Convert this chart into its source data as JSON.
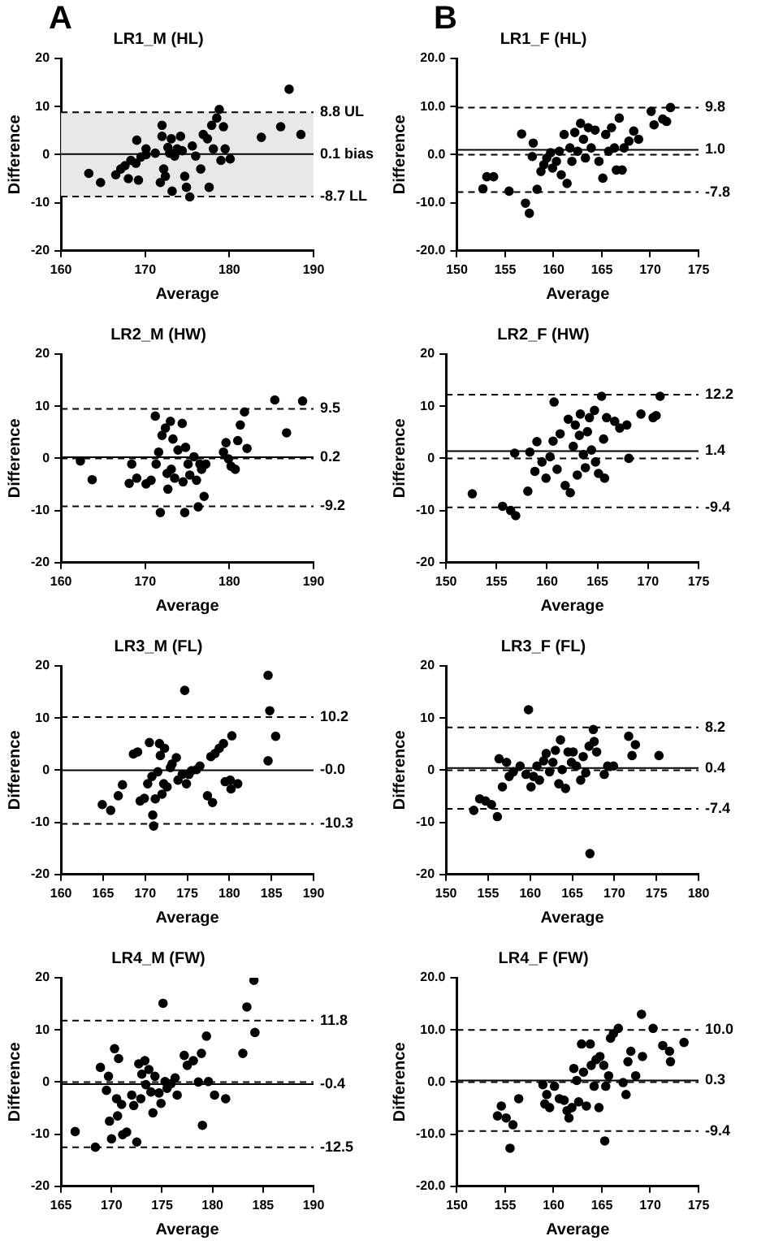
{
  "chart_data": [
    {
      "type": "scatter",
      "title": "LR1_M (HL)",
      "xlabel": "Average",
      "ylabel": "Difference",
      "annotations": [
        "A"
      ],
      "color": "#000000",
      "marker": "circle",
      "grid": false,
      "legend": false,
      "xlim": [
        160,
        190
      ],
      "xticks": [
        160,
        170,
        180,
        190
      ],
      "ylim": [
        -20,
        20
      ],
      "yticks": [
        -20,
        -10,
        0,
        10,
        20
      ],
      "ref_lines": [
        {
          "axis": "y",
          "value": 8.8,
          "label": "8.8 UL",
          "line_style": "dashed"
        },
        {
          "axis": "y",
          "value": 0.1,
          "label": "0.1 bias",
          "line_style": "solid"
        },
        {
          "axis": "y",
          "value": -8.7,
          "label": "-8.7 LL",
          "line_style": "dashed"
        }
      ],
      "bands": [
        {
          "axis": "y",
          "from": -8.7,
          "to": 8.8,
          "color": "#e8e8e8"
        }
      ],
      "x": [
        163.3,
        164.7,
        166.5,
        167.1,
        167.6,
        168,
        168.3,
        168.9,
        169,
        169.2,
        169.5,
        170.1,
        170.1,
        171.2,
        171.8,
        172,
        172,
        172.2,
        172.4,
        172.7,
        172.9,
        173.1,
        173.2,
        173.5,
        173.8,
        174.2,
        174.4,
        174.7,
        174.9,
        175.3,
        175.6,
        176,
        176.6,
        176.9,
        177.4,
        177.6,
        177.9,
        178.1,
        178.5,
        178.8,
        179,
        179.3,
        179.5,
        180.1,
        183.8,
        186.1,
        187.1,
        188.5
      ],
      "values": [
        -3.9,
        -5.8,
        -4.2,
        -3,
        -2.3,
        -5,
        -1.2,
        -1.8,
        3,
        -5.3,
        -0.5,
        1.2,
        0,
        0.3,
        -5.8,
        6.1,
        3.8,
        -3,
        -4.5,
        1.5,
        0.3,
        3.3,
        -7.6,
        -0.3,
        1.2,
        3.8,
        0.8,
        -4.5,
        -6.8,
        -8.8,
        1.8,
        -0.3,
        -3,
        4.2,
        3.3,
        -6.8,
        6.1,
        1.2,
        7.6,
        9.4,
        -1.2,
        5.8,
        1.2,
        -0.9,
        3.6,
        5.8,
        13.6,
        4.2
      ]
    },
    {
      "type": "scatter",
      "title": "LR1_F (HL)",
      "xlabel": "Average",
      "ylabel": "Difference",
      "annotations": [
        "B"
      ],
      "color": "#000000",
      "marker": "circle",
      "grid": false,
      "legend": false,
      "xlim": [
        150,
        175
      ],
      "xticks": [
        150,
        155,
        160,
        165,
        170,
        175
      ],
      "ylim": [
        -20,
        20
      ],
      "yticks": [
        {
          "value": -20,
          "label": "-20.0"
        },
        {
          "value": -10,
          "label": "-10.0"
        },
        {
          "value": 0,
          "label": "0.0"
        },
        {
          "value": 10,
          "label": "10.0"
        },
        {
          "value": 20,
          "label": "20.0"
        }
      ],
      "ref_lines": [
        {
          "axis": "y",
          "value": 9.8,
          "label": "9.8",
          "line_style": "dashed"
        },
        {
          "axis": "y",
          "value": 1.0,
          "label": "1.0",
          "line_style": "solid"
        },
        {
          "axis": "y",
          "value": 0,
          "line_style": "dashed"
        },
        {
          "axis": "y",
          "value": -7.8,
          "label": "-7.8",
          "line_style": "dashed"
        }
      ],
      "x": [
        152.7,
        153.1,
        153.8,
        155.4,
        156.7,
        157.1,
        157.5,
        157.8,
        157.9,
        158.3,
        158.7,
        159,
        159.3,
        159.7,
        159.9,
        160.3,
        160.6,
        160.8,
        161.1,
        161.4,
        161.7,
        161.9,
        162.2,
        162.5,
        162.8,
        163.1,
        163.3,
        163.6,
        163.9,
        164.3,
        164.7,
        165.1,
        165.4,
        165.7,
        166,
        166.3,
        166.5,
        166.8,
        167.1,
        167.3,
        167.8,
        168.3,
        168.8,
        170.1,
        170.4,
        171.3,
        171.7,
        172.1
      ],
      "values": [
        -7.1,
        -4.6,
        -4.6,
        -7.6,
        4.3,
        -10.1,
        -12.2,
        -0.4,
        2.4,
        -7.2,
        -3.5,
        -2.1,
        -0.7,
        0.4,
        -2.8,
        -1.4,
        0.7,
        -4.2,
        4.2,
        -6,
        1.4,
        -1.4,
        4.6,
        0.7,
        6.5,
        3.2,
        -0.7,
        5.6,
        1.4,
        5.1,
        -1.4,
        -4.9,
        4.2,
        0.7,
        5.6,
        1.4,
        -3.2,
        7.6,
        -3.2,
        1.4,
        2.8,
        4.9,
        3.2,
        9,
        6.2,
        7.4,
        6.9,
        9.8
      ]
    },
    {
      "type": "scatter",
      "title": "LR2_M (HW)",
      "xlabel": "Average",
      "ylabel": "Difference",
      "color": "#000000",
      "marker": "circle",
      "grid": false,
      "legend": false,
      "xlim": [
        160,
        190
      ],
      "xticks": [
        160,
        170,
        180,
        190
      ],
      "ylim": [
        -20,
        20
      ],
      "yticks": [
        -20,
        -10,
        0,
        10,
        20
      ],
      "ref_lines": [
        {
          "axis": "y",
          "value": 9.5,
          "label": "9.5",
          "line_style": "dashed"
        },
        {
          "axis": "y",
          "value": 0.2,
          "label": "0.2",
          "line_style": "solid"
        },
        {
          "axis": "y",
          "value": 0,
          "line_style": "dashed"
        },
        {
          "axis": "y",
          "value": -9.2,
          "label": "-9.2",
          "line_style": "dashed"
        }
      ],
      "x": [
        162.3,
        163.7,
        168.1,
        168.4,
        169,
        170.1,
        170.7,
        171.2,
        171.3,
        171.6,
        171.8,
        172,
        172.4,
        172.6,
        172.7,
        173,
        173.1,
        173.3,
        173.5,
        173.9,
        174.4,
        174.5,
        174.7,
        174.8,
        175.1,
        175.3,
        175.8,
        176.1,
        176.3,
        176.5,
        176.7,
        177,
        177.2,
        179.3,
        179.6,
        179.9,
        180.2,
        180.7,
        181,
        181.3,
        181.8,
        182.1,
        185.4,
        186.8,
        188.7
      ],
      "values": [
        -0.5,
        -4.1,
        -4.8,
        -1.1,
        -3.8,
        -4.9,
        -4.2,
        8.1,
        -1.1,
        1.2,
        -10.4,
        4.4,
        5.8,
        -2.9,
        -5.9,
        7.1,
        -2.1,
        3.7,
        -3.8,
        1.6,
        6.7,
        -4.5,
        -10.4,
        2.1,
        -1.1,
        -3.2,
        0.3,
        -4.2,
        -9.3,
        -1.1,
        -2.1,
        -7.3,
        -1.1,
        1.2,
        3,
        -0.1,
        -1.5,
        -2.1,
        3.4,
        6.4,
        8.9,
        1.9,
        11.2,
        4.9,
        11
      ]
    },
    {
      "type": "scatter",
      "title": "LR2_F (HW)",
      "xlabel": "Average",
      "ylabel": "Difference",
      "color": "#000000",
      "marker": "circle",
      "grid": false,
      "legend": false,
      "xlim": [
        150,
        175
      ],
      "xticks": [
        150,
        155,
        160,
        165,
        170,
        175
      ],
      "ylim": [
        -20,
        20
      ],
      "yticks": [
        -20,
        -10,
        0,
        10,
        20
      ],
      "ref_lines": [
        {
          "axis": "y",
          "value": 12.2,
          "label": "12.2",
          "line_style": "dashed"
        },
        {
          "axis": "y",
          "value": 1.4,
          "label": "1.4",
          "line_style": "solid"
        },
        {
          "axis": "y",
          "value": 0,
          "line_style": "dashed"
        },
        {
          "axis": "y",
          "value": -9.4,
          "label": "-9.4",
          "line_style": "dashed"
        }
      ],
      "x": [
        152.6,
        155.6,
        156.4,
        156.9,
        156.8,
        158.1,
        158.3,
        158.8,
        159,
        159.5,
        159.9,
        160.3,
        160.6,
        160.7,
        161,
        161.3,
        161.8,
        162.1,
        162.3,
        162.6,
        162.8,
        163,
        163.2,
        163.3,
        163.6,
        163.8,
        164,
        164.2,
        164.4,
        164.7,
        164.8,
        165.1,
        165.4,
        165.6,
        165.7,
        165.9,
        166.7,
        167.2,
        167.9,
        168.1,
        169.3,
        170.5,
        170.8,
        171.2
      ],
      "values": [
        -6.8,
        -9.2,
        -10,
        -11,
        1,
        -6.3,
        1.2,
        -2.5,
        3.2,
        -0.7,
        -3.8,
        0.3,
        3.3,
        10.8,
        -2.1,
        4.7,
        -5.2,
        7.5,
        -6.6,
        2.3,
        6.4,
        -3.2,
        4.4,
        8.5,
        0.7,
        -1.8,
        5.1,
        7.8,
        1.6,
        9.2,
        -0.7,
        -2.9,
        11.9,
        3.7,
        -3.8,
        7.8,
        7.1,
        5.8,
        6.4,
        0,
        8.5,
        7.8,
        8.2,
        11.9
      ]
    },
    {
      "type": "scatter",
      "title": "LR3_M (FL)",
      "xlabel": "Average",
      "ylabel": "Difference",
      "color": "#000000",
      "marker": "circle",
      "grid": false,
      "legend": false,
      "xlim": [
        160,
        190
      ],
      "xticks": [
        160,
        165,
        170,
        175,
        180,
        185,
        190
      ],
      "ylim": [
        -20,
        20
      ],
      "yticks": [
        -20,
        -10,
        0,
        10,
        20
      ],
      "ref_lines": [
        {
          "axis": "y",
          "value": 10.2,
          "label": "10.2",
          "line_style": "dashed"
        },
        {
          "axis": "y",
          "value": 0,
          "label": "-0.0",
          "line_style": "solid"
        },
        {
          "axis": "y",
          "value": -10.3,
          "label": "-10.3",
          "line_style": "dashed"
        }
      ],
      "x": [
        164.9,
        165.9,
        166.8,
        167.3,
        168.6,
        169.1,
        169.4,
        169.9,
        170.5,
        170.3,
        170.8,
        170.9,
        171,
        171.2,
        171.5,
        171.7,
        171.8,
        172,
        172.2,
        172.3,
        172.6,
        173,
        173.2,
        173.7,
        173.9,
        174.7,
        174.4,
        174.9,
        175.2,
        175.5,
        176.1,
        176.5,
        177.4,
        177.8,
        178,
        178.3,
        178.8,
        179.3,
        179.5,
        180.1,
        180.3,
        180.2,
        181,
        184.6,
        184.6,
        184.8,
        185.5
      ],
      "values": [
        -6.6,
        -7.7,
        -4.9,
        -2.8,
        3.1,
        3.5,
        -5.9,
        -5.4,
        5.3,
        -2.6,
        -1.2,
        -8.6,
        -10.7,
        -5.5,
        -0.3,
        5.1,
        2.8,
        -4.6,
        -2.6,
        4.2,
        -3.2,
        0.5,
        1.2,
        2.4,
        -1.9,
        15.3,
        -0.8,
        -2.6,
        -0.8,
        -0.1,
        0.1,
        0.8,
        -4.9,
        2.6,
        -6.2,
        3.2,
        4.2,
        5.1,
        -2.2,
        -1.9,
        6.6,
        -3.6,
        -2.6,
        1.8,
        18.2,
        11.4,
        6.5
      ]
    },
    {
      "type": "scatter",
      "title": "LR3_F (FL)",
      "xlabel": "Average",
      "ylabel": "Difference",
      "color": "#000000",
      "marker": "circle",
      "grid": false,
      "legend": false,
      "xlim": [
        150,
        180
      ],
      "xticks": [
        150,
        155,
        160,
        165,
        170,
        175,
        180
      ],
      "ylim": [
        -20,
        20
      ],
      "yticks": [
        -20,
        -10,
        0,
        10,
        20
      ],
      "ref_lines": [
        {
          "axis": "y",
          "value": 8.2,
          "label": "8.2",
          "line_style": "dashed"
        },
        {
          "axis": "y",
          "value": 0.4,
          "label": "0.4",
          "line_style": "solid"
        },
        {
          "axis": "y",
          "value": 0,
          "line_style": "dashed"
        },
        {
          "axis": "y",
          "value": -7.4,
          "label": "-7.4",
          "line_style": "dashed"
        }
      ],
      "x": [
        153.3,
        154,
        154.7,
        155.4,
        156.1,
        156.3,
        156.7,
        157.2,
        157.5,
        158,
        158.8,
        159.8,
        159.5,
        160.1,
        160.4,
        160.8,
        161.1,
        161.6,
        161.9,
        162.3,
        162.7,
        163,
        163.4,
        163.6,
        163.8,
        164.2,
        164.5,
        164.9,
        165.1,
        165.5,
        166,
        166.3,
        166.6,
        167,
        167.1,
        167.5,
        167.6,
        167.9,
        168.8,
        169.2,
        169.9,
        171.7,
        172.1,
        172.5,
        175.3
      ],
      "values": [
        -7.7,
        -5.5,
        -5.9,
        -6.6,
        -8.9,
        2.2,
        -3.2,
        1.5,
        -1.2,
        -0.3,
        0.8,
        11.6,
        -0.8,
        -3.2,
        -1.2,
        0.8,
        -1.9,
        1.8,
        3.2,
        -0.3,
        1.5,
        3.8,
        -2.6,
        5.8,
        0.1,
        -3.5,
        3.5,
        1.5,
        3.5,
        0.8,
        -1.9,
        2.6,
        -0.5,
        4.6,
        -16,
        7.8,
        5.5,
        3.5,
        -0.8,
        0.8,
        0.8,
        6.5,
        2.8,
        4.9,
        2.8
      ]
    },
    {
      "type": "scatter",
      "title": "LR4_M (FW)",
      "xlabel": "Average",
      "ylabel": "Difference",
      "color": "#000000",
      "marker": "circle",
      "grid": false,
      "legend": false,
      "xlim": [
        165,
        190
      ],
      "xticks": [
        165,
        170,
        175,
        180,
        185,
        190
      ],
      "ylim": [
        -20,
        20
      ],
      "yticks": [
        -20,
        -10,
        0,
        10,
        20
      ],
      "ref_lines": [
        {
          "axis": "y",
          "value": 11.8,
          "label": "11.8",
          "line_style": "dashed"
        },
        {
          "axis": "y",
          "value": -0.4,
          "label": "-0.4",
          "line_style": "solid"
        },
        {
          "axis": "y",
          "value": 0,
          "line_style": "dashed"
        },
        {
          "axis": "y",
          "value": -12.5,
          "label": "-12.5",
          "line_style": "dashed"
        }
      ],
      "x": [
        166.4,
        168.4,
        168.9,
        169.5,
        169.7,
        169.8,
        170,
        170.3,
        170.5,
        170.6,
        170.7,
        171,
        171.1,
        171.5,
        172,
        172.2,
        172.5,
        172.7,
        172.9,
        173,
        173.3,
        173.4,
        173.7,
        173.9,
        174.1,
        174.3,
        174.7,
        174.9,
        175.1,
        175.3,
        175.5,
        175.9,
        176.3,
        176.5,
        177.2,
        177.5,
        178.1,
        178.6,
        178.9,
        179,
        179.4,
        179.6,
        180.2,
        181.3,
        183,
        183.4,
        184.2,
        184.1
      ],
      "values": [
        -9.5,
        -12.5,
        2.8,
        -1.6,
        1.1,
        -7.5,
        -10.9,
        6.4,
        -3.2,
        -6.5,
        4.5,
        -4.3,
        -10.1,
        -9.6,
        -2.5,
        -4.5,
        -11.5,
        3.5,
        -3.2,
        1.5,
        4.1,
        -0.5,
        2.4,
        -1.9,
        -5.9,
        1.1,
        -2.1,
        -4.1,
        15.1,
        0.1,
        -1.2,
        -0.3,
        0.8,
        -2.5,
        5.1,
        3.2,
        4.1,
        0,
        5.5,
        -8.3,
        8.8,
        0.1,
        -2.5,
        -3.2,
        5.5,
        14.4,
        9.5,
        19.5
      ]
    },
    {
      "type": "scatter",
      "title": "LR4_F (FW)",
      "xlabel": "Average",
      "ylabel": "Difference",
      "color": "#000000",
      "marker": "circle",
      "grid": false,
      "legend": false,
      "xlim": [
        150,
        175
      ],
      "xticks": [
        150,
        155,
        160,
        165,
        170,
        175
      ],
      "ylim": [
        -20,
        20
      ],
      "yticks": [
        {
          "value": -20,
          "label": "-20.0"
        },
        {
          "value": -10,
          "label": "-10.0"
        },
        {
          "value": 0,
          "label": "0.0"
        },
        {
          "value": 10,
          "label": "10.0"
        },
        {
          "value": 20,
          "label": "20.0"
        }
      ],
      "ref_lines": [
        {
          "axis": "y",
          "value": 10.0,
          "label": "10.0",
          "line_style": "dashed"
        },
        {
          "axis": "y",
          "value": 0.3,
          "label": "0.3",
          "line_style": "solid"
        },
        {
          "axis": "y",
          "value": 0,
          "line_style": "dashed"
        },
        {
          "axis": "y",
          "value": -9.4,
          "label": "-9.4",
          "line_style": "dashed"
        }
      ],
      "x": [
        154.2,
        154.6,
        155.1,
        155.5,
        155.8,
        156.4,
        158.9,
        159.1,
        159.3,
        159.6,
        160.1,
        160.6,
        161.1,
        161.4,
        161.6,
        161.9,
        162.1,
        162.4,
        162.6,
        162.9,
        163.1,
        163.4,
        163.8,
        163.9,
        164.2,
        164.4,
        164.7,
        164.8,
        165.3,
        165.2,
        165.4,
        165.7,
        165.9,
        166.2,
        166.7,
        167.2,
        167.5,
        167.7,
        168,
        168.5,
        169.1,
        169.2,
        170.3,
        171.3,
        172,
        172.1,
        173.5
      ],
      "values": [
        -6.5,
        -4.6,
        -6.9,
        -12.7,
        -8.2,
        -3.2,
        -0.5,
        -4.2,
        -2.4,
        -4.9,
        -0.8,
        -3.2,
        -3.5,
        -5.5,
        -6.9,
        -4.9,
        2.6,
        0.3,
        -3.8,
        7.3,
        1.9,
        -4.6,
        7.3,
        3.2,
        -0.8,
        4.3,
        -4.9,
        4.9,
        -11.3,
        3.2,
        -0.8,
        1.2,
        8.4,
        9.3,
        10.3,
        -0.1,
        -2.4,
        3.9,
        5.9,
        1.2,
        13,
        4.9,
        10.3,
        7,
        5.9,
        3.9,
        7.6
      ]
    }
  ]
}
